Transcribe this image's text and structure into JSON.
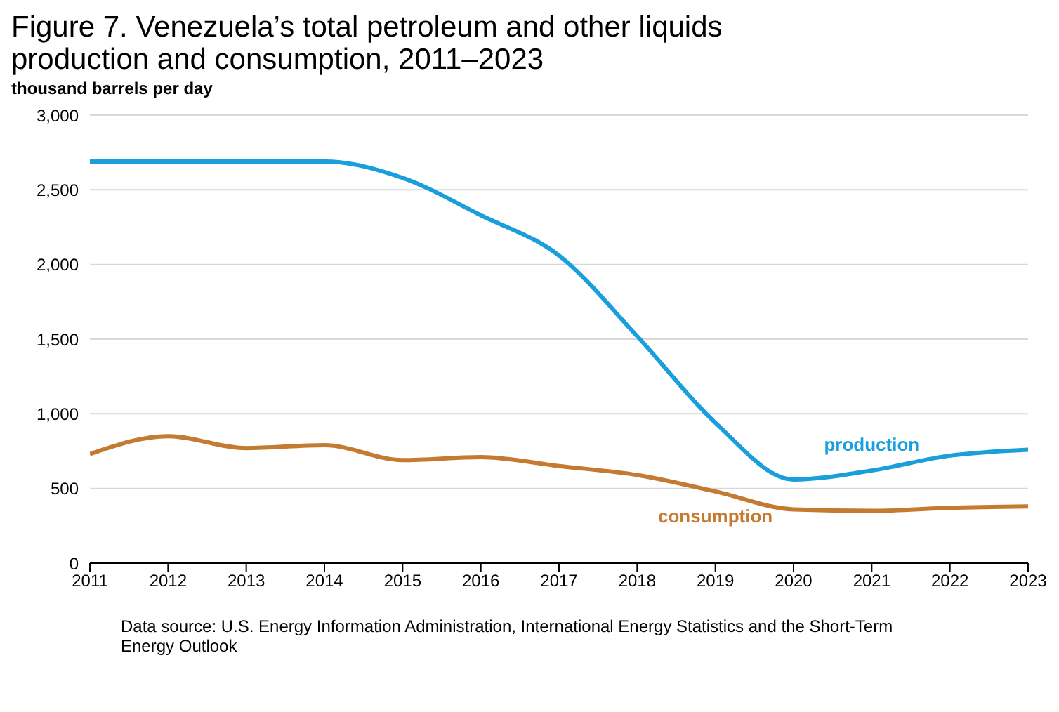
{
  "chart_data": {
    "type": "line",
    "title": "Figure 7. Venezuela’s total petroleum and other liquids production and consumption, 2011–2023",
    "ylabel": "thousand barrels per day",
    "x": [
      2011,
      2012,
      2013,
      2014,
      2015,
      2016,
      2017,
      2018,
      2019,
      2020,
      2021,
      2022,
      2023
    ],
    "series": [
      {
        "name": "production",
        "color": "#1a9fdb",
        "values": [
          2690,
          2690,
          2690,
          2690,
          2580,
          2330,
          2060,
          1520,
          940,
          560,
          620,
          720,
          760
        ]
      },
      {
        "name": "consumption",
        "color": "#c47a30",
        "values": [
          730,
          850,
          770,
          790,
          690,
          710,
          650,
          590,
          480,
          360,
          350,
          370,
          380
        ]
      }
    ],
    "xlim": [
      2011,
      2023
    ],
    "xticks": [
      2011,
      2012,
      2013,
      2014,
      2015,
      2016,
      2017,
      2018,
      2019,
      2020,
      2021,
      2022,
      2023
    ],
    "ylim": [
      0,
      3000
    ],
    "yticks": [
      0,
      500,
      {
        "value": 1000,
        "label": "1,000"
      },
      {
        "value": 1500,
        "label": "1,500"
      },
      {
        "value": 2000,
        "label": "2,000"
      },
      {
        "value": 2500,
        "label": "2,500"
      },
      {
        "value": 3000,
        "label": "3,000"
      }
    ],
    "grid": "y",
    "legend": false,
    "marker": "none",
    "line_style": "solid",
    "annotations": [
      "Data source: U.S. Energy Information Administration, International Energy Statistics and the Short-Term Energy Outlook"
    ]
  }
}
